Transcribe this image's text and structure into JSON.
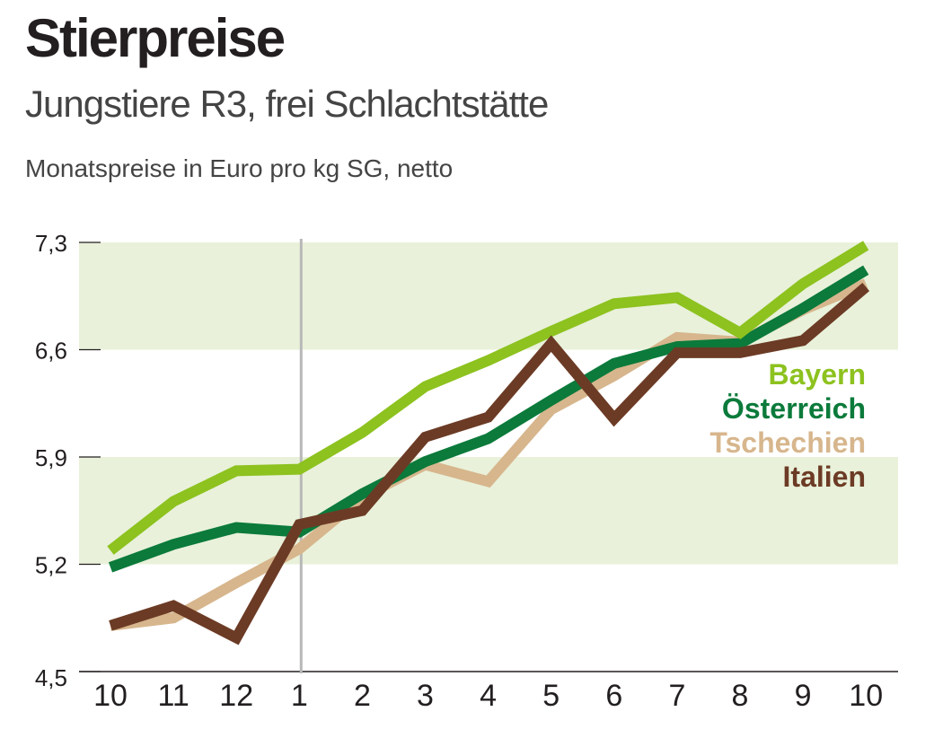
{
  "chart_data": {
    "type": "line",
    "title": "Stierpreise",
    "subtitle": "Jungstiere R3, frei Schlachtstätte",
    "ylabel": "Monatspreise in Euro pro kg SG, netto",
    "xlabel": "",
    "categories": [
      "10",
      "11",
      "12",
      "1",
      "2",
      "3",
      "4",
      "5",
      "6",
      "7",
      "8",
      "9",
      "10"
    ],
    "yticks": [
      "4,5",
      "5,2",
      "5,9",
      "6,6",
      "7,3"
    ],
    "ylim": [
      4.5,
      7.3
    ],
    "bands": [
      [
        5.2,
        5.9
      ],
      [
        6.6,
        7.3
      ]
    ],
    "year_divider_at": "1",
    "legend_position": "right",
    "series": [
      {
        "name": "Bayern",
        "color": "#8dc21f",
        "values": [
          5.29,
          5.61,
          5.81,
          5.82,
          6.06,
          6.36,
          6.53,
          6.72,
          6.9,
          6.94,
          6.71,
          7.03,
          7.28
        ]
      },
      {
        "name": "Österreich",
        "color": "#0b7a3b",
        "values": [
          5.18,
          5.33,
          5.44,
          5.41,
          5.66,
          5.87,
          6.02,
          6.27,
          6.51,
          6.62,
          6.64,
          6.87,
          7.12
        ]
      },
      {
        "name": "Tschechien",
        "color": "#d7b68d",
        "values": [
          4.8,
          4.85,
          5.08,
          5.3,
          5.64,
          5.85,
          5.74,
          6.21,
          6.43,
          6.68,
          6.65,
          6.86,
          7.03
        ]
      },
      {
        "name": "Italien",
        "color": "#6c3b25",
        "values": [
          4.8,
          4.93,
          4.72,
          5.46,
          5.55,
          6.03,
          6.16,
          6.64,
          6.15,
          6.58,
          6.58,
          6.66,
          7.01
        ]
      }
    ]
  }
}
